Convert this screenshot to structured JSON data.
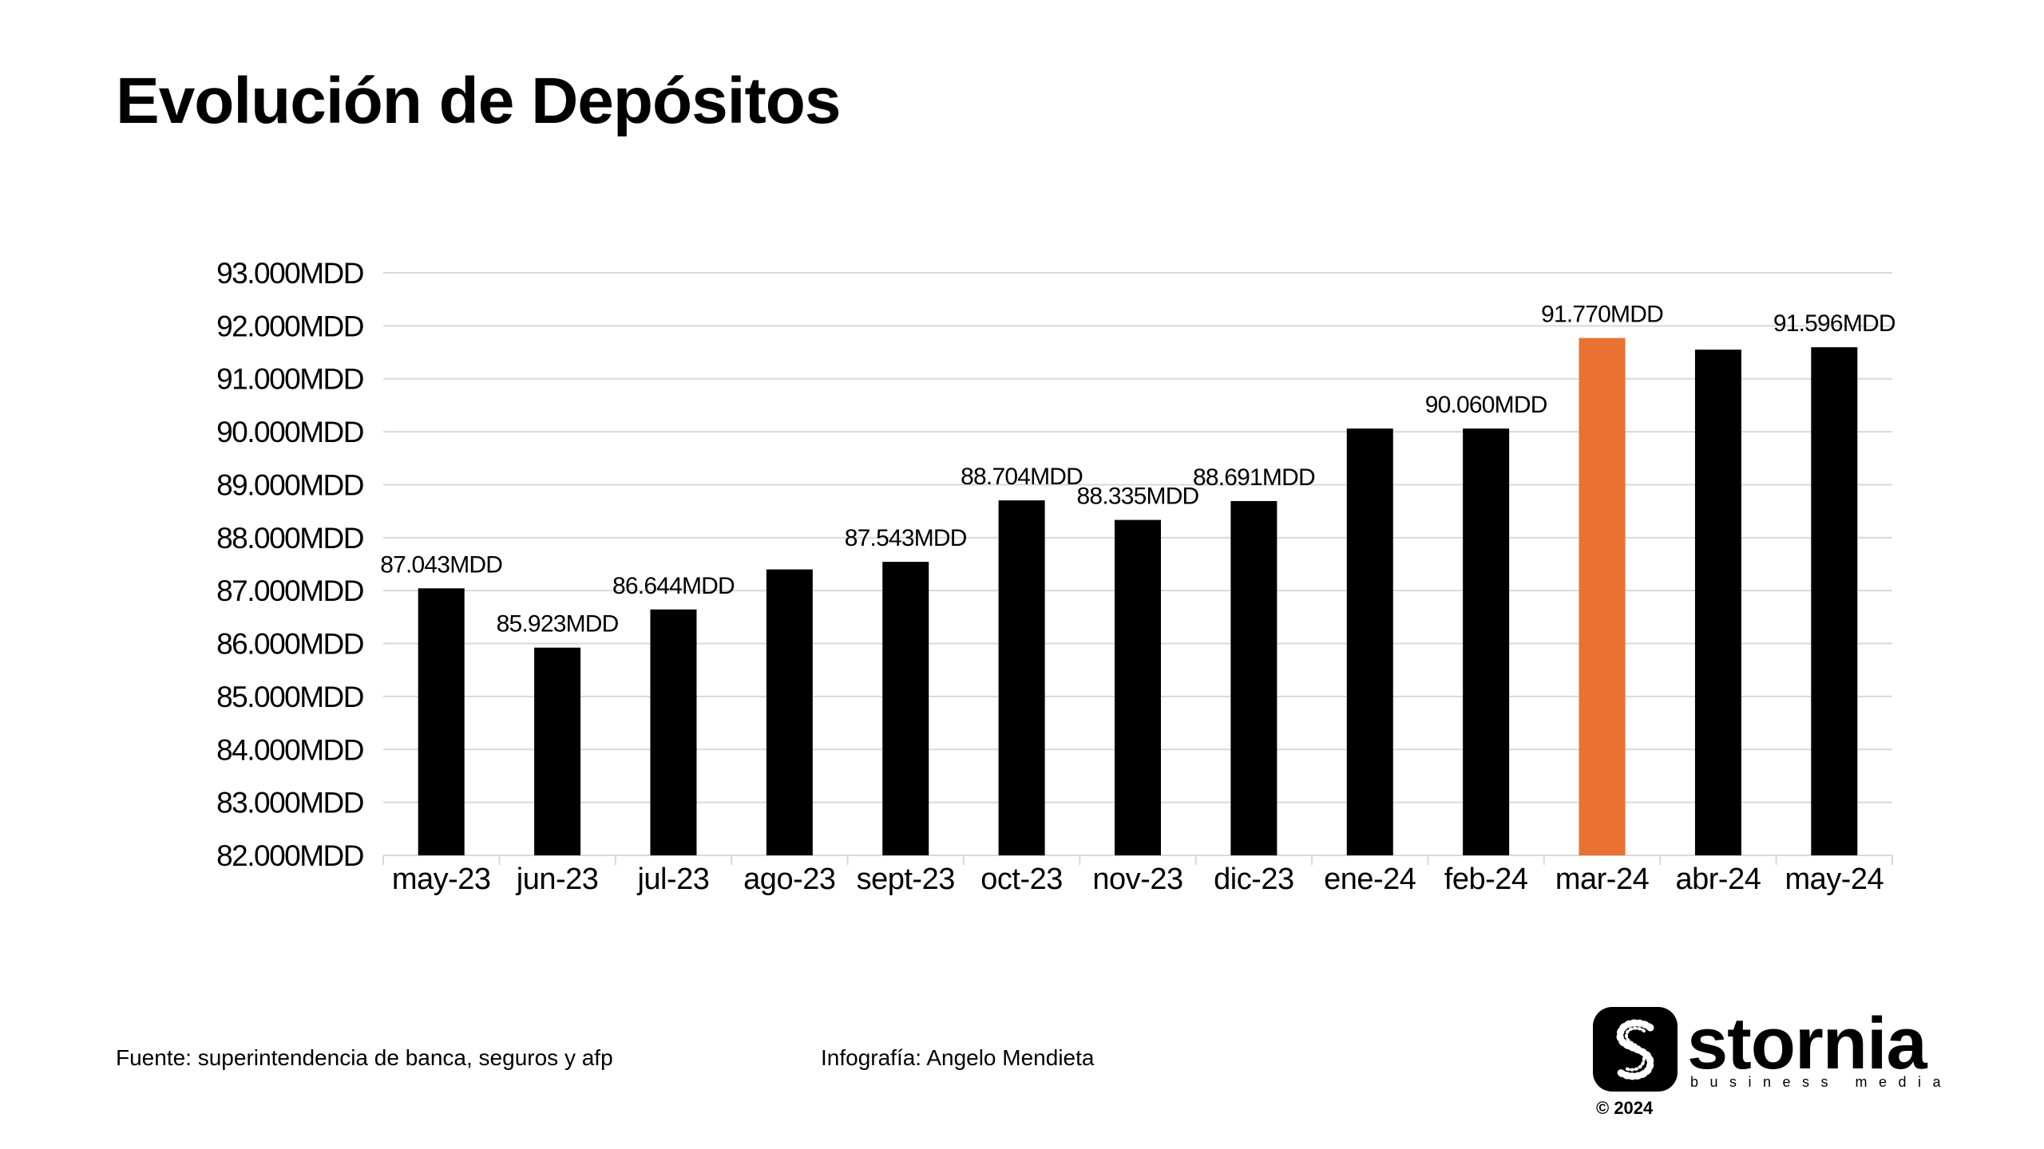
{
  "chart_data": {
    "type": "bar",
    "title": "Evolución de Depósitos",
    "unit_suffix": "MDD",
    "categories": [
      "may-23",
      "jun-23",
      "jul-23",
      "ago-23",
      "sept-23",
      "oct-23",
      "nov-23",
      "dic-23",
      "ene-24",
      "feb-24",
      "mar-24",
      "abr-24",
      "may-24"
    ],
    "values": [
      87043,
      85923,
      86644,
      87400,
      87543,
      88704,
      88335,
      88691,
      90060,
      90060,
      91770,
      91550,
      91596
    ],
    "data_labels": [
      "87.043MDD",
      "85.923MDD",
      "86.644MDD",
      "",
      "87.543MDD",
      "88.704MDD",
      "88.335MDD",
      "88.691MDD",
      "",
      "90.060MDD",
      "91.770MDD",
      "",
      "91.596MDD"
    ],
    "ylim": [
      82000,
      93000
    ],
    "yticks": [
      82000,
      83000,
      84000,
      85000,
      86000,
      87000,
      88000,
      89000,
      90000,
      91000,
      92000,
      93000
    ],
    "ytick_labels": [
      "82.000MDD",
      "83.000MDD",
      "84.000MDD",
      "85.000MDD",
      "86.000MDD",
      "87.000MDD",
      "88.000MDD",
      "89.000MDD",
      "90.000MDD",
      "91.000MDD",
      "92.000MDD",
      "93.000MDD"
    ],
    "grid": true,
    "highlight_index": 10,
    "bar_color": "#000000",
    "highlight_color": "#E97132",
    "grid_color": "#D9D9D9"
  },
  "footer": {
    "source": "Fuente: superintendencia de banca, seguros y afp",
    "credit": "Infografía: Angelo Mendieta"
  },
  "brand": {
    "logo_icon": "stornia-s-icon",
    "name": "stornia",
    "tagline": "business media",
    "copyright": "© 2024"
  }
}
